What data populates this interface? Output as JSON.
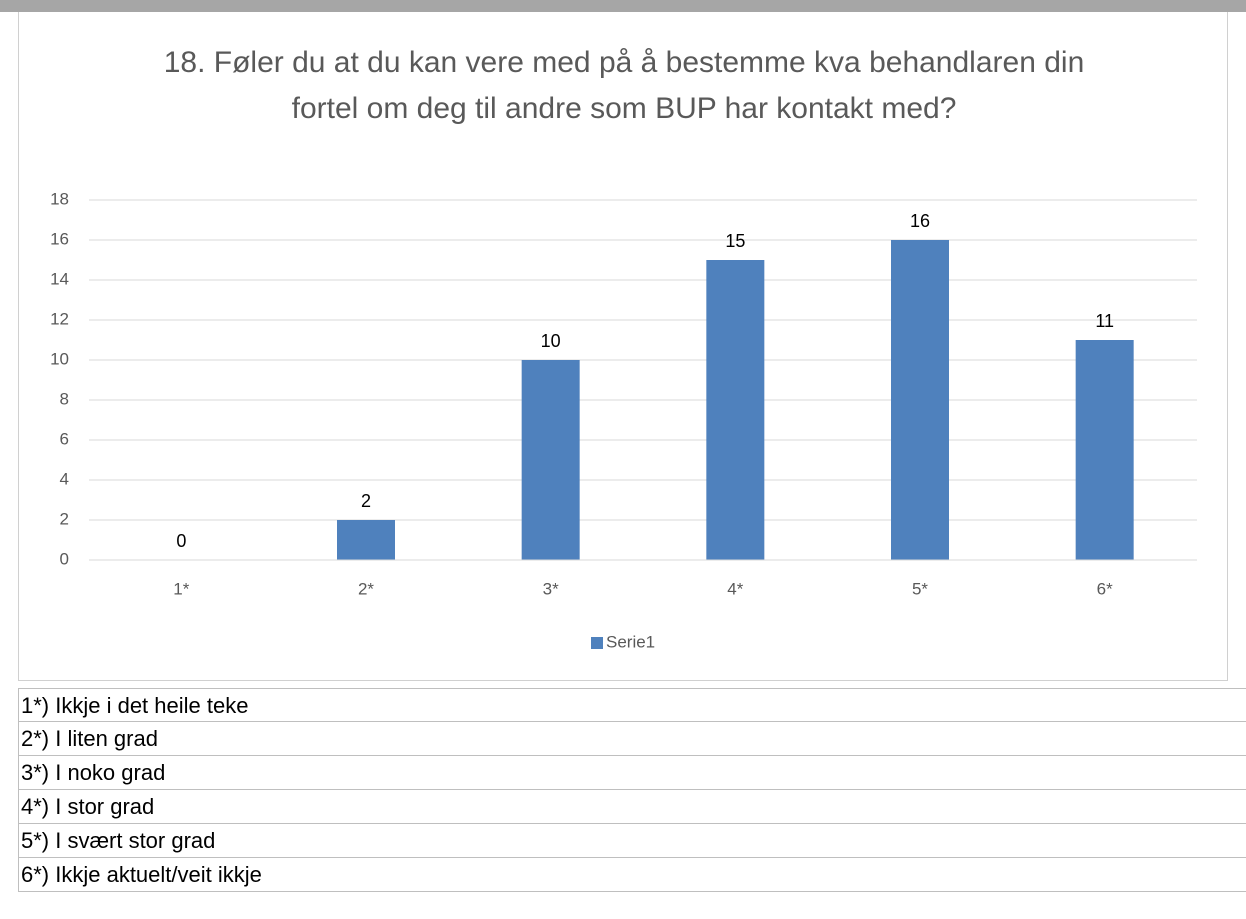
{
  "chart_data": {
    "type": "bar",
    "title": "18. Føler du at du kan vere med på å bestemme kva behandlaren din fortel om deg til andre som BUP har kontakt med?",
    "categories": [
      "1*",
      "2*",
      "3*",
      "4*",
      "5*",
      "6*"
    ],
    "series": [
      {
        "name": "Serie1",
        "color": "#4f81bd",
        "values": [
          0,
          2,
          10,
          15,
          16,
          11
        ]
      }
    ],
    "ylim": [
      0,
      18
    ],
    "yticks": [
      0,
      2,
      4,
      6,
      8,
      10,
      12,
      14,
      16,
      18
    ],
    "grid": true,
    "legend": "bottom"
  },
  "footnotes": [
    "1*) Ikkje i det heile teke",
    "2*) I liten grad",
    "3*) I noko grad",
    "4*) I stor grad",
    "5*) I svært stor grad",
    "6*) Ikkje aktuelt/veit ikkje"
  ]
}
